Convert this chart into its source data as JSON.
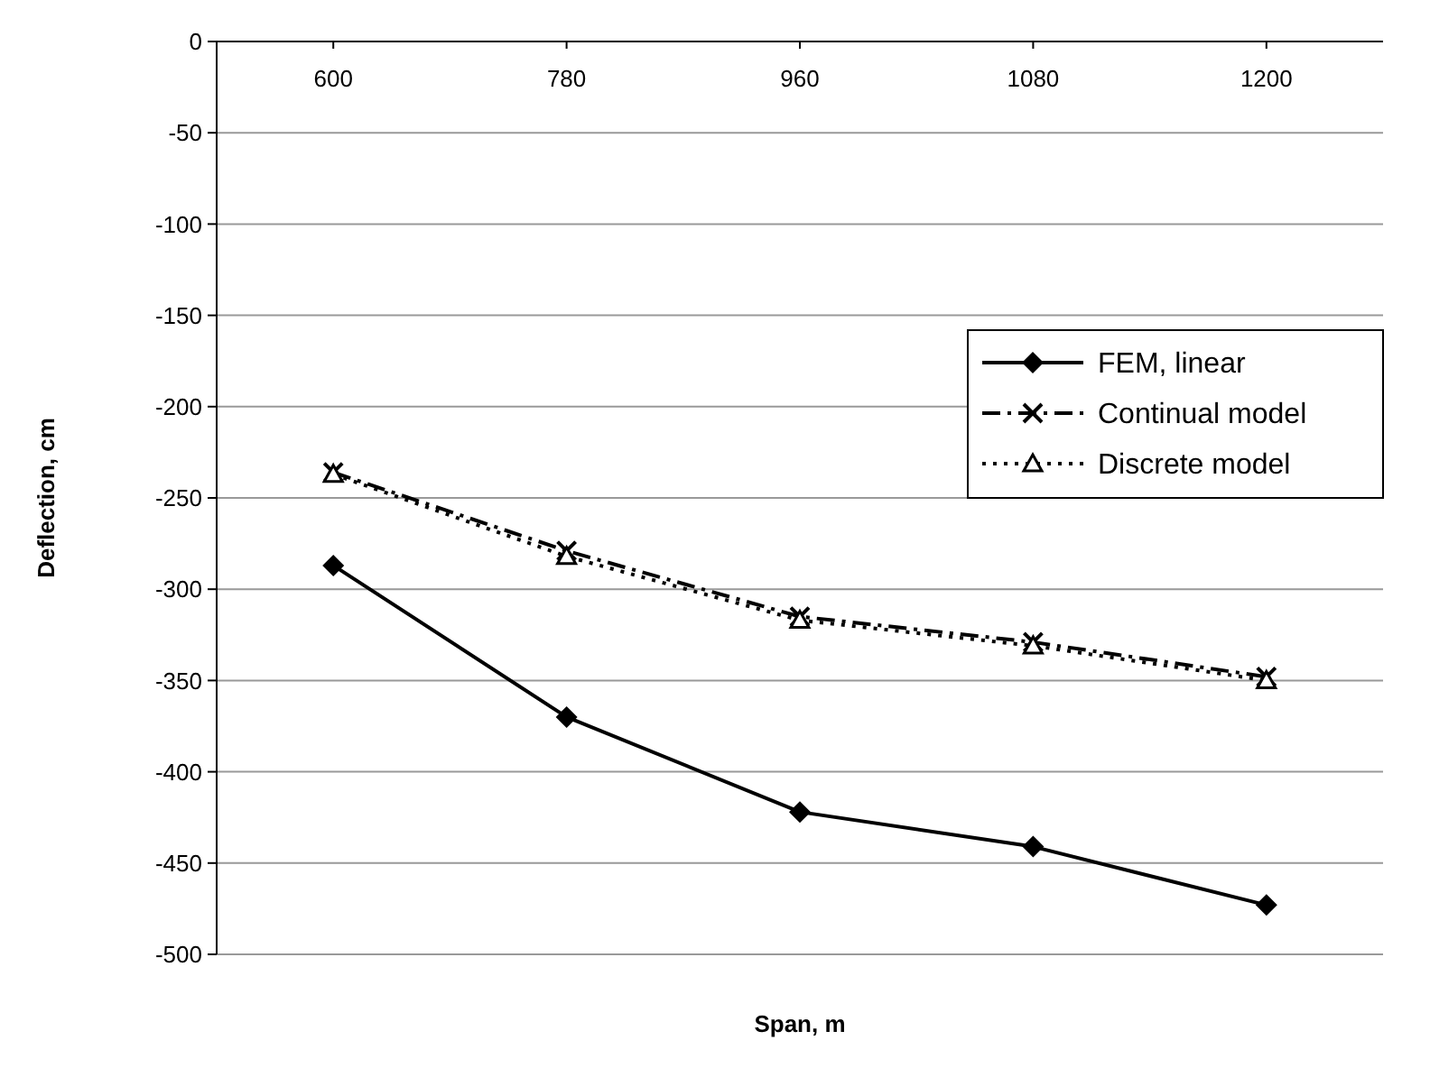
{
  "chart_data": {
    "type": "line",
    "xlabel": "Span, m",
    "ylabel": "Deflection, cm",
    "categories": [
      "600",
      "780",
      "960",
      "1080",
      "1200"
    ],
    "ylim": [
      -500,
      0
    ],
    "yticks": [
      0,
      -50,
      -100,
      -150,
      -200,
      -250,
      -300,
      -350,
      -400,
      -450,
      -500
    ],
    "grid": "y",
    "legend": "right",
    "series": [
      {
        "name": "FEM, linear",
        "color": "#000000",
        "marker": "diamond",
        "line_style": "solid",
        "values": [
          -287,
          -370,
          -422,
          -441,
          -473
        ]
      },
      {
        "name": "Continual model",
        "color": "#000000",
        "marker": "cross",
        "line_style": "dashed",
        "values": [
          -236,
          -279,
          -315,
          -329,
          -348
        ]
      },
      {
        "name": "Discrete model",
        "color": "#000000",
        "marker": "triangle",
        "line_style": "dotted",
        "values": [
          -237,
          -282,
          -317,
          -331,
          -350
        ]
      }
    ]
  }
}
